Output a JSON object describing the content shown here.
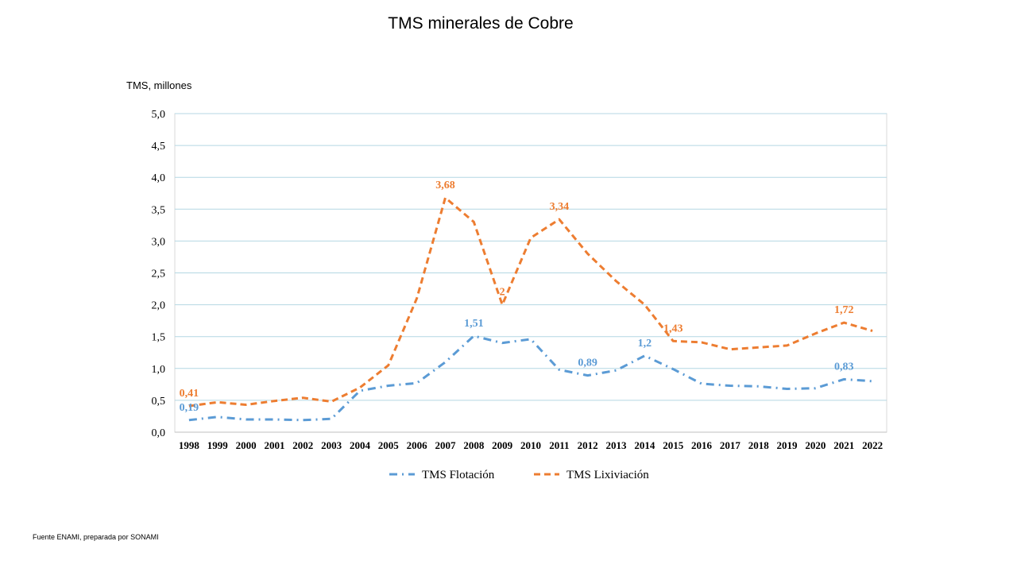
{
  "page": {
    "title": "TMS minerales de Cobre",
    "source_note": "Fuente ENAMI, preparada por SONAMI"
  },
  "chart_data": {
    "type": "line",
    "title": "TMS minerales de Cobre",
    "ylabel": "TMS, millones",
    "xlabel": "",
    "ylim": [
      0,
      5
    ],
    "y_ticks": [
      "0,0",
      "0,5",
      "1,0",
      "1,5",
      "2,0",
      "2,5",
      "3,0",
      "3,5",
      "4,0",
      "4,5",
      "5,0"
    ],
    "grid": true,
    "legend_position": "bottom",
    "categories": [
      "1998",
      "1999",
      "2000",
      "2001",
      "2002",
      "2003",
      "2004",
      "2005",
      "2006",
      "2007",
      "2008",
      "2009",
      "2010",
      "2011",
      "2012",
      "2013",
      "2014",
      "2015",
      "2016",
      "2017",
      "2018",
      "2019",
      "2020",
      "2021",
      "2022"
    ],
    "series": [
      {
        "name": "TMS Flotación",
        "color": "#5b9bd5",
        "style": "dash-dot",
        "values": [
          0.19,
          0.24,
          0.2,
          0.2,
          0.19,
          0.21,
          0.65,
          0.73,
          0.77,
          1.1,
          1.51,
          1.4,
          1.46,
          0.98,
          0.89,
          0.97,
          1.2,
          0.99,
          0.76,
          0.73,
          0.72,
          0.68,
          0.69,
          0.83,
          0.8
        ],
        "labels": [
          {
            "index": 0,
            "text": "0,19"
          },
          {
            "index": 10,
            "text": "1,51"
          },
          {
            "index": 14,
            "text": "0,89"
          },
          {
            "index": 16,
            "text": "1,2"
          },
          {
            "index": 23,
            "text": "0,83"
          }
        ]
      },
      {
        "name": "TMS Lixiviación",
        "color": "#ed7d31",
        "style": "dash",
        "values": [
          0.41,
          0.47,
          0.43,
          0.49,
          0.54,
          0.48,
          0.7,
          1.05,
          2.1,
          3.68,
          3.3,
          2.0,
          3.05,
          3.34,
          2.8,
          2.37,
          2.0,
          1.43,
          1.41,
          1.3,
          1.33,
          1.36,
          1.55,
          1.72,
          1.59
        ],
        "labels": [
          {
            "index": 0,
            "text": "0,41"
          },
          {
            "index": 9,
            "text": "3,68"
          },
          {
            "index": 11,
            "text": "2"
          },
          {
            "index": 13,
            "text": "3,34"
          },
          {
            "index": 17,
            "text": "1,43"
          },
          {
            "index": 23,
            "text": "1,72"
          }
        ]
      }
    ]
  }
}
